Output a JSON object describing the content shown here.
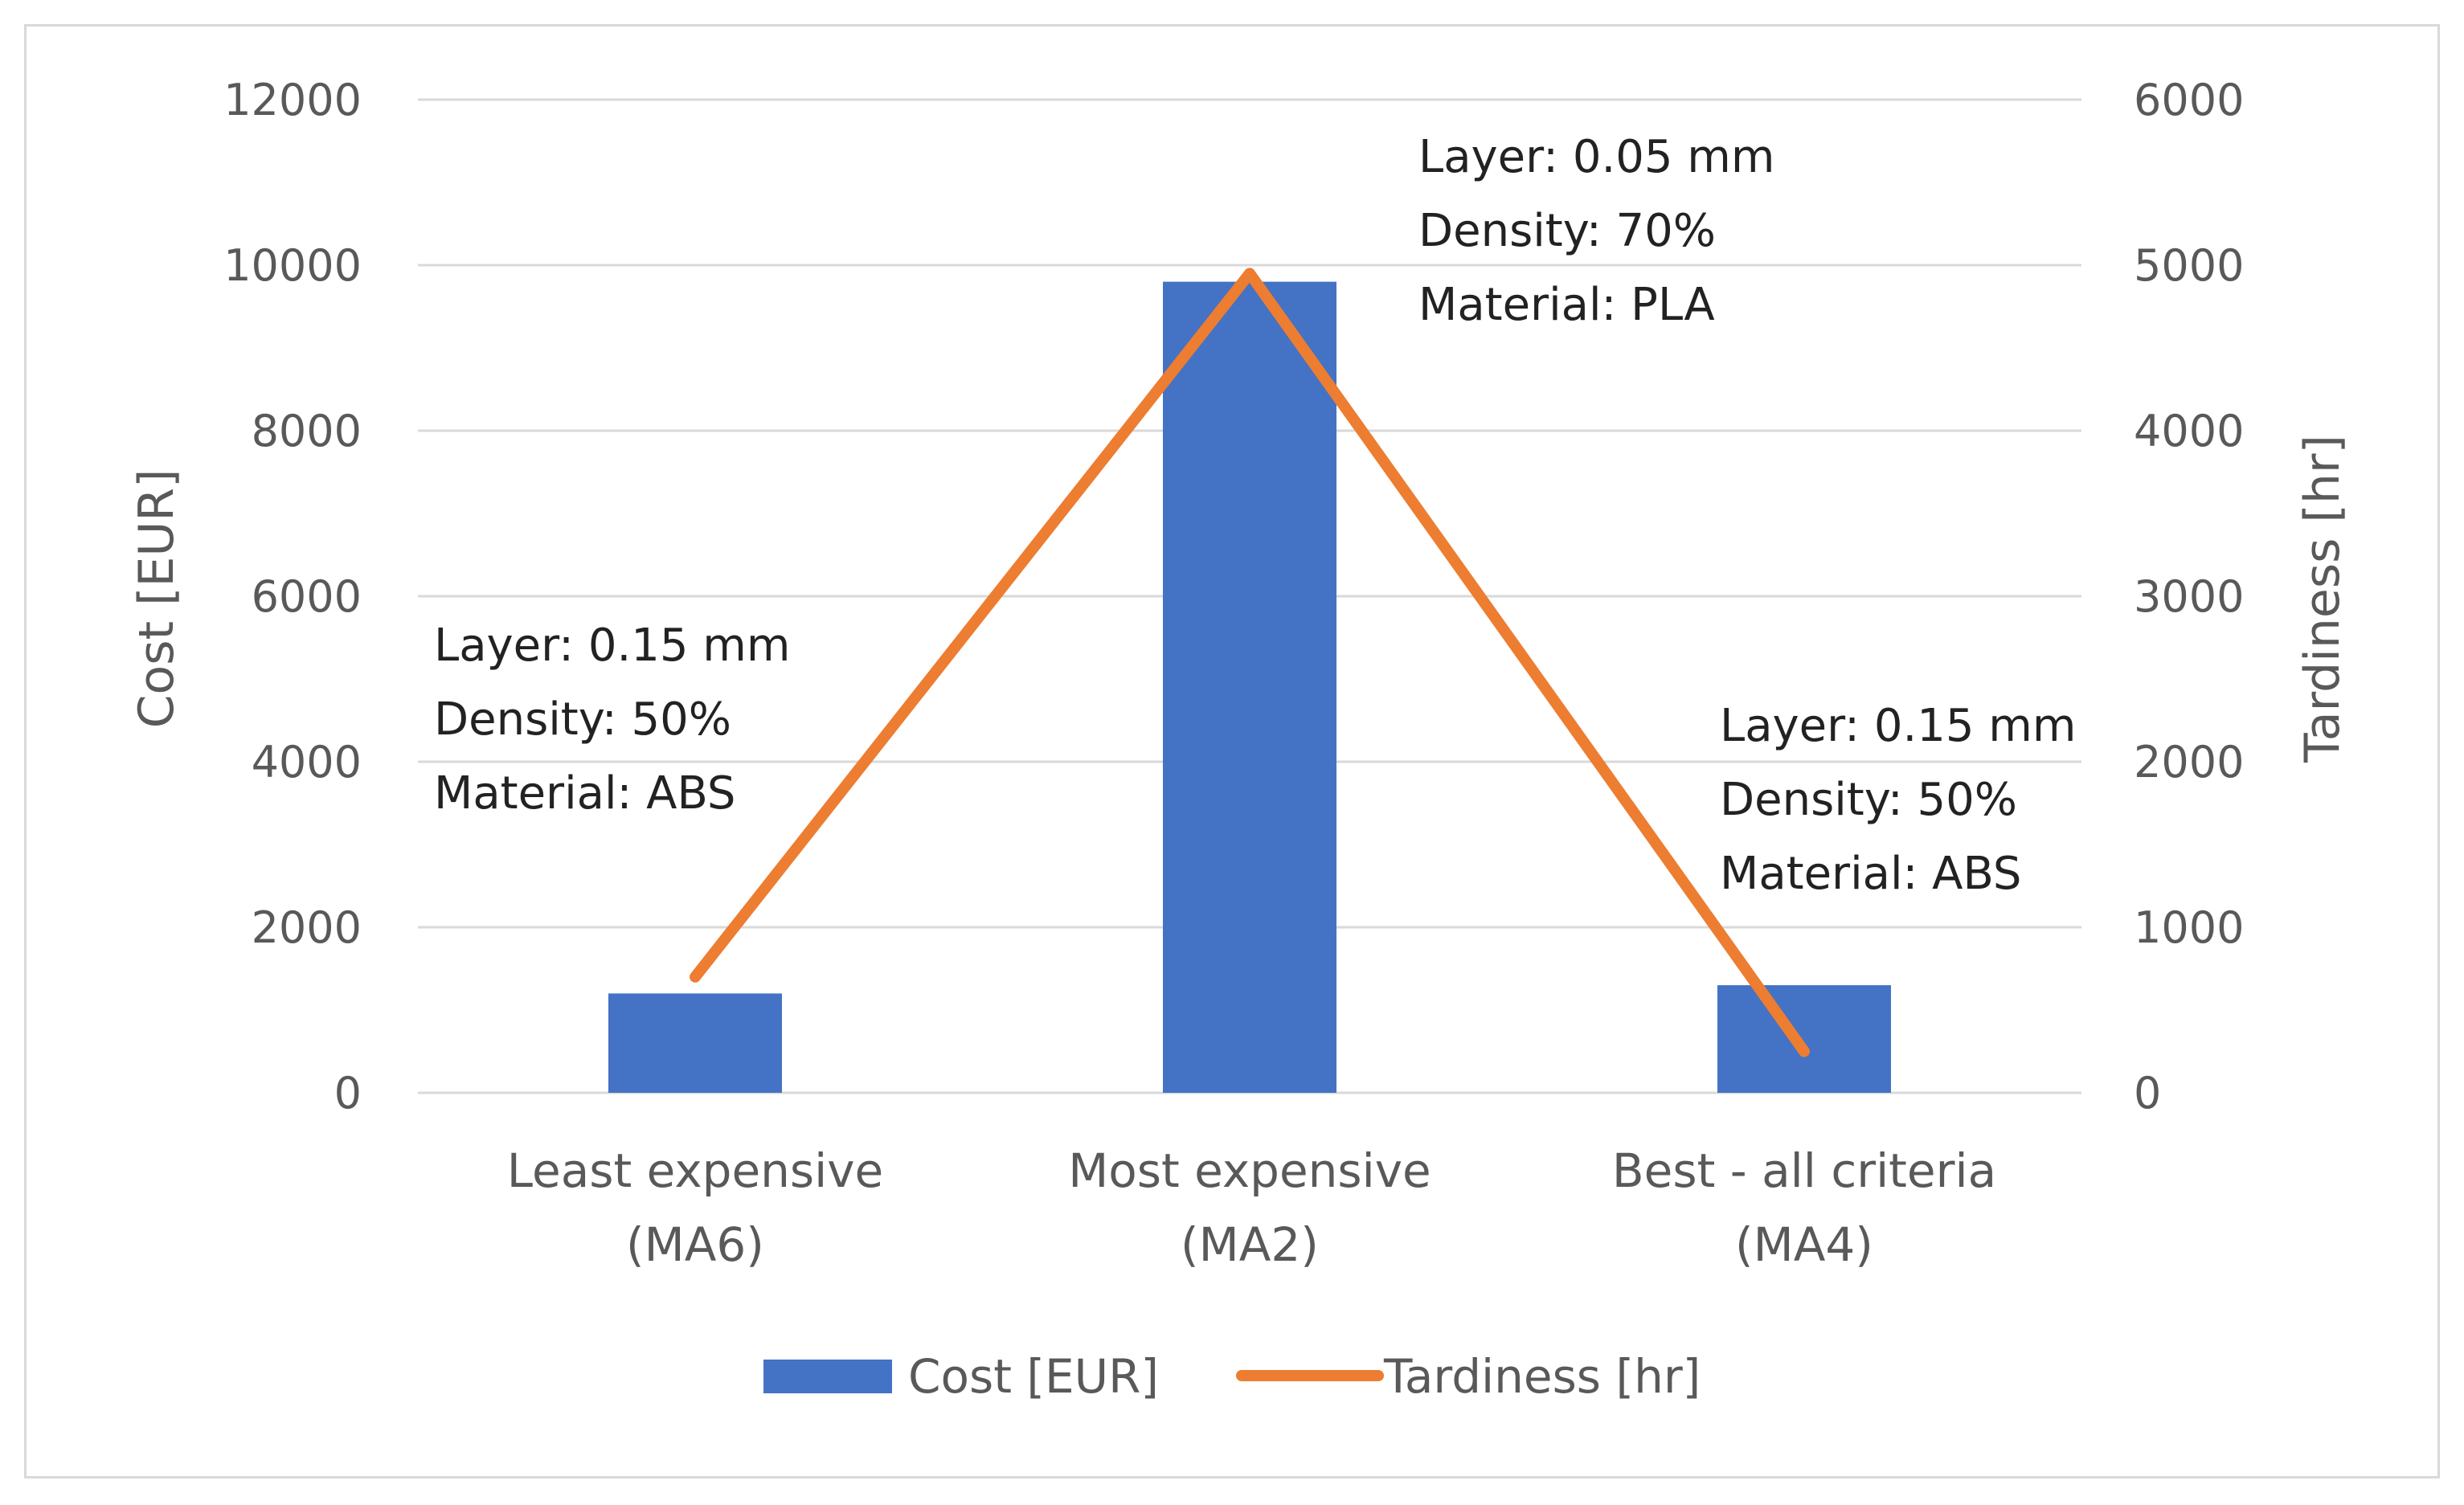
{
  "chart_data": {
    "type": "bar",
    "categories": [
      [
        "Least expensive",
        "(MA6)"
      ],
      [
        "Most expensive",
        "(MA2)"
      ],
      [
        "Best - all criteria",
        "(MA4)"
      ]
    ],
    "series": [
      {
        "name": "Cost [EUR]",
        "type": "bar",
        "axis": "left",
        "color": "#4472c4",
        "values": [
          1200,
          9800,
          1300
        ]
      },
      {
        "name": "Tardiness [hr]",
        "type": "line",
        "axis": "right",
        "color": "#ed7d31",
        "values": [
          700,
          4950,
          250
        ]
      }
    ],
    "ylabel": "Cost [EUR]",
    "ylabel_right": "Tardiness [hr]",
    "ylim": [
      0,
      12000
    ],
    "ylim_right": [
      0,
      6000
    ],
    "yticks": [
      "0",
      "2000",
      "4000",
      "6000",
      "8000",
      "10000",
      "12000"
    ],
    "yticks_right": [
      "0",
      "1000",
      "2000",
      "3000",
      "4000",
      "5000",
      "6000"
    ],
    "grid": true,
    "legend_position": "bottom",
    "annotations": [
      {
        "category_index": 0,
        "lines": [
          "Layer: 0.15  mm",
          "Density: 50%",
          "Material: ABS"
        ]
      },
      {
        "category_index": 1,
        "lines": [
          "Layer: 0.05  mm",
          "Density: 70%",
          "Material: PLA"
        ]
      },
      {
        "category_index": 2,
        "lines": [
          "Layer: 0.15  mm",
          "Density: 50%",
          "Material: ABS"
        ]
      }
    ]
  }
}
